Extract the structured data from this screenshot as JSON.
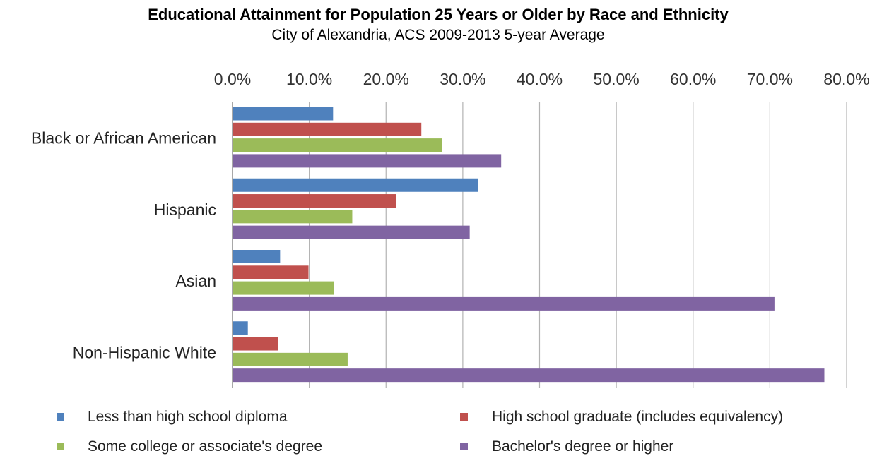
{
  "chart_data": {
    "type": "bar",
    "orientation": "horizontal",
    "title": "Educational Attainment for Population 25 Years or Older by Race and Ethnicity",
    "subtitle": "City of Alexandria, ACS 2009-2013 5-year Average",
    "categories": [
      "Black or African American",
      "Hispanic",
      "Asian",
      "Non-Hispanic White"
    ],
    "series": [
      {
        "name": "Less than high school diploma",
        "color": "#4F81BD",
        "values": [
          13.1,
          32.0,
          6.2,
          2.0
        ]
      },
      {
        "name": "High school graduate (includes equivalency)",
        "color": "#C0504D",
        "values": [
          24.6,
          21.3,
          9.9,
          5.9
        ]
      },
      {
        "name": "Some college or associate's degree",
        "color": "#9BBB59",
        "values": [
          27.3,
          15.6,
          13.2,
          15.0
        ]
      },
      {
        "name": "Bachelor's degree or higher",
        "color": "#8064A2",
        "values": [
          35.0,
          30.9,
          70.6,
          77.1
        ]
      }
    ],
    "xlim": [
      0,
      80
    ],
    "ticks": [
      "0.0%",
      "10.0%",
      "20.0%",
      "30.0%",
      "40.0%",
      "50.0%",
      "60.0%",
      "70.0%",
      "80.0%"
    ],
    "grid": true,
    "legend_position": "bottom"
  }
}
